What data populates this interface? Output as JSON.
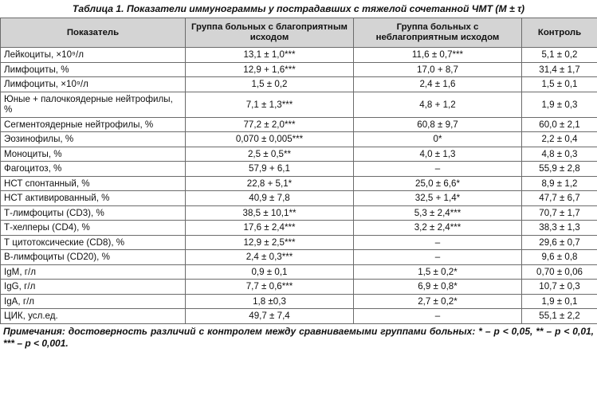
{
  "caption": "Таблица 1. Показатели иммунограммы у пострадавших с тяжелой сочетанной ЧМТ (M ± τ)",
  "headers": {
    "indicator": "Показатель",
    "favorable": "Группа больных с благоприятным исходом",
    "unfavorable": "Группа больных с неблагоприятным исходом",
    "control": "Контроль"
  },
  "rows": [
    {
      "name": "Лейкоциты, ×10⁹/л",
      "favorable": "13,1 ± 1,0***",
      "unfavorable": "11,6 ± 0,7***",
      "control": "5,1 ± 0,2"
    },
    {
      "name": "Лимфоциты, %",
      "favorable": "12,9 + 1,6***",
      "unfavorable": "17,0 + 8,7",
      "control": "31,4 ± 1,7"
    },
    {
      "name": "Лимфоциты, ×10⁹/л",
      "favorable": "1,5 ± 0,2",
      "unfavorable": "2,4 ± 1,6",
      "control": "1,5 ± 0,1"
    },
    {
      "name": "Юные + палочкоядерные нейтрофилы, %",
      "favorable": "7,1 ± 1,3***",
      "unfavorable": "4,8 + 1,2",
      "control": "1,9 ± 0,3",
      "tall": true
    },
    {
      "name": "Сегментоядерные нейтрофилы, %",
      "favorable": "77,2 ± 2,0***",
      "unfavorable": "60,8 ± 9,7",
      "control": "60,0 ± 2,1"
    },
    {
      "name": "Эозинофилы, %",
      "favorable": "0,070 ± 0,005***",
      "unfavorable": "0*",
      "control": "2,2 ± 0,4"
    },
    {
      "name": "Моноциты, %",
      "favorable": "2,5 ± 0,5**",
      "unfavorable": "4,0 ± 1,3",
      "control": "4,8 ± 0,3"
    },
    {
      "name": "Фагоцитоз, %",
      "favorable": "57,9 + 6,1",
      "unfavorable": "–",
      "control": "55,9 ± 2,8"
    },
    {
      "name": "НСТ спонтанный, %",
      "favorable": "22,8 + 5,1*",
      "unfavorable": "25,0 ± 6,6*",
      "control": "8,9 ± 1,2"
    },
    {
      "name": "НСТ активированный, %",
      "favorable": "40,9 ± 7,8",
      "unfavorable": "32,5 + 1,4*",
      "control": "47,7 ± 6,7"
    },
    {
      "name": "Т-лимфоциты (CD3), %",
      "favorable": "38,5 ± 10,1**",
      "unfavorable": "5,3 ± 2,4***",
      "control": "70,7 ± 1,7"
    },
    {
      "name": "Т-хелперы (CD4), %",
      "favorable": "17,6 ± 2,4***",
      "unfavorable": "3,2 ± 2,4***",
      "control": "38,3 ± 1,3"
    },
    {
      "name": "Т цитотоксические (CD8), %",
      "favorable": "12,9 ± 2,5***",
      "unfavorable": "–",
      "control": "29,6 ± 0,7"
    },
    {
      "name": "В-лимфоциты (CD20), %",
      "favorable": "2,4 ± 0,3***",
      "unfavorable": "–",
      "control": "9,6 ± 0,8"
    },
    {
      "name": "IgM, г/л",
      "favorable": "0,9 ± 0,1",
      "unfavorable": "1,5 ± 0,2*",
      "control": "0,70 ± 0,06"
    },
    {
      "name": "IgG, г/л",
      "favorable": "7,7 ± 0,6***",
      "unfavorable": "6,9 ± 0,8*",
      "control": "10,7 ± 0,3"
    },
    {
      "name": "IgA, г/л",
      "favorable": "1,8 ±0,3",
      "unfavorable": "2,7 ± 0,2*",
      "control": "1,9 ± 0,1"
    },
    {
      "name": "ЦИК, усл.ед.",
      "favorable": "49,7 ± 7,4",
      "unfavorable": "–",
      "control": "55,1 ± 2,2"
    }
  ],
  "notes": "Примечания: достоверность различий с контролем между сравниваемыми группами больных: * – p < 0,05, ** – p < 0,01, *** – p < 0,001."
}
